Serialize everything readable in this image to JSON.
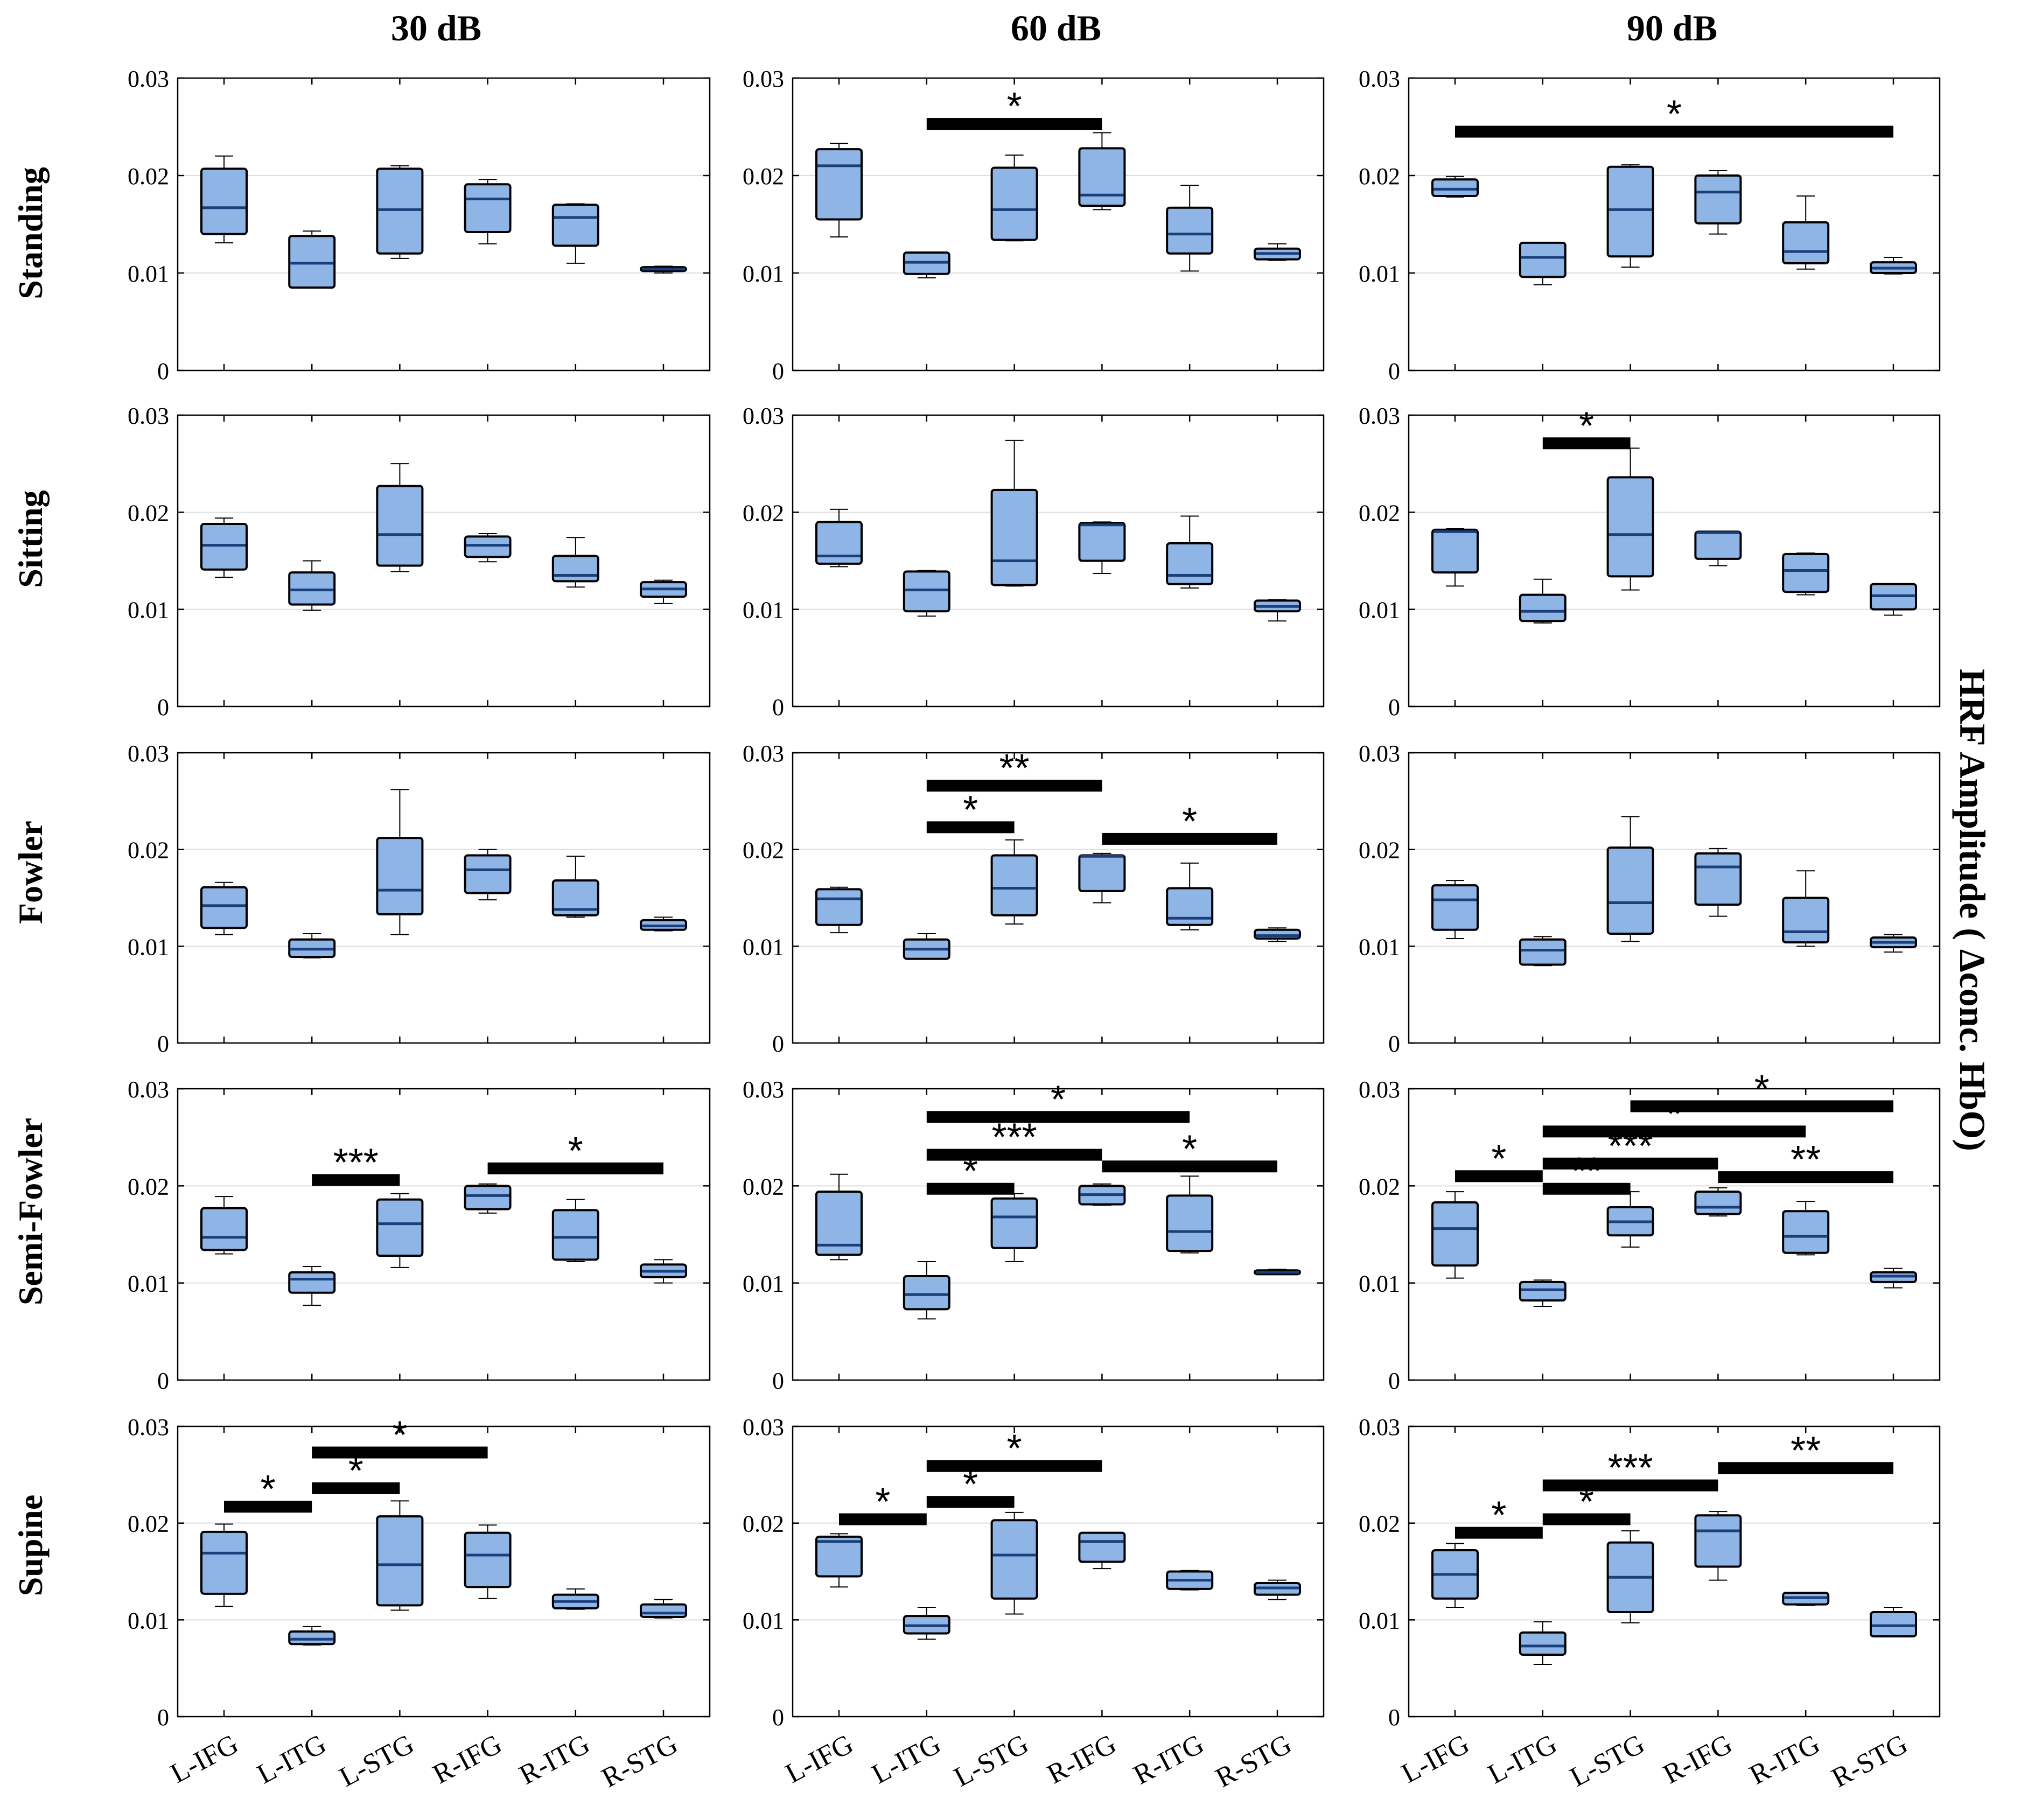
{
  "col_titles": [
    "30 dB",
    "60 dB",
    "90 dB"
  ],
  "row_titles": [
    "Standing",
    "Sitting",
    "Fowler",
    "Semi-Fowler",
    "Supine"
  ],
  "side_label": "HRF Amplitude ( Δconc. HbO)",
  "colors": {
    "box_fill": "#8fb4e6",
    "box_edge": "#000000",
    "median": "#1a3f7a",
    "grid": "#dddddd",
    "sig_bar": "#000000"
  },
  "chart_data": {
    "type": "box",
    "categories": [
      "L-IFG",
      "L-ITG",
      "L-STG",
      "R-IFG",
      "R-ITG",
      "R-STG"
    ],
    "ylim": [
      0,
      0.03
    ],
    "yticks": [
      0,
      0.01,
      0.02,
      0.03
    ],
    "ytick_labels": [
      "0",
      "0.01",
      "0.02",
      "0.03"
    ],
    "panels": [
      {
        "row": "Standing",
        "col": "30 dB",
        "boxes": [
          [
            0.0131,
            0.014,
            0.0167,
            0.0207,
            0.022
          ],
          [
            0.0085,
            0.0085,
            0.011,
            0.0138,
            0.0143
          ],
          [
            0.0115,
            0.012,
            0.0165,
            0.0207,
            0.021
          ],
          [
            0.013,
            0.0142,
            0.0176,
            0.0191,
            0.0196
          ],
          [
            0.011,
            0.0128,
            0.0157,
            0.017,
            0.0171
          ],
          [
            0.01,
            0.0102,
            0.0104,
            0.0106,
            0.0107
          ]
        ],
        "sig": []
      },
      {
        "row": "Standing",
        "col": "60 dB",
        "boxes": [
          [
            0.0137,
            0.0155,
            0.021,
            0.0227,
            0.0233
          ],
          [
            0.0095,
            0.0099,
            0.0111,
            0.0121,
            0.0121
          ],
          [
            0.0133,
            0.0134,
            0.0165,
            0.0208,
            0.0221
          ],
          [
            0.0165,
            0.0169,
            0.018,
            0.0228,
            0.0244
          ],
          [
            0.0102,
            0.012,
            0.014,
            0.0167,
            0.019
          ],
          [
            0.0113,
            0.0114,
            0.012,
            0.0125,
            0.013
          ]
        ],
        "sig": [
          {
            "from": 1,
            "to": 3,
            "y": 0.0253,
            "label": "*"
          }
        ]
      },
      {
        "row": "Standing",
        "col": "90 dB",
        "boxes": [
          [
            0.0178,
            0.0179,
            0.0186,
            0.0196,
            0.0199
          ],
          [
            0.0088,
            0.0096,
            0.0116,
            0.0131,
            0.0131
          ],
          [
            0.0106,
            0.0117,
            0.0165,
            0.0209,
            0.0211
          ],
          [
            0.014,
            0.0151,
            0.0183,
            0.02,
            0.0205
          ],
          [
            0.0104,
            0.011,
            0.0122,
            0.0152,
            0.0179
          ],
          [
            0.0099,
            0.01,
            0.0105,
            0.0111,
            0.0116
          ]
        ],
        "sig": [
          {
            "from": 0,
            "to": 5,
            "y": 0.0245,
            "label": "*"
          }
        ]
      },
      {
        "row": "Sitting",
        "col": "30 dB",
        "boxes": [
          [
            0.0133,
            0.0141,
            0.0166,
            0.0188,
            0.0194
          ],
          [
            0.0099,
            0.0105,
            0.012,
            0.0138,
            0.015
          ],
          [
            0.0139,
            0.0145,
            0.0177,
            0.0227,
            0.025
          ],
          [
            0.0149,
            0.0154,
            0.0166,
            0.0175,
            0.0178
          ],
          [
            0.0123,
            0.0129,
            0.0135,
            0.0155,
            0.0174
          ],
          [
            0.0106,
            0.0113,
            0.0121,
            0.0128,
            0.013
          ]
        ],
        "sig": []
      },
      {
        "row": "Sitting",
        "col": "60 dB",
        "boxes": [
          [
            0.0144,
            0.0147,
            0.0155,
            0.019,
            0.0203
          ],
          [
            0.0093,
            0.0098,
            0.012,
            0.0139,
            0.014
          ],
          [
            0.0124,
            0.0125,
            0.015,
            0.0223,
            0.0274
          ],
          [
            0.0137,
            0.015,
            0.0187,
            0.0189,
            0.019
          ],
          [
            0.0122,
            0.0126,
            0.0135,
            0.0168,
            0.0196
          ],
          [
            0.0088,
            0.0098,
            0.0103,
            0.0109,
            0.011
          ]
        ],
        "sig": []
      },
      {
        "row": "Sitting",
        "col": "90 dB",
        "boxes": [
          [
            0.0124,
            0.0138,
            0.018,
            0.0182,
            0.0183
          ],
          [
            0.0086,
            0.0088,
            0.0098,
            0.0115,
            0.0131
          ],
          [
            0.012,
            0.0134,
            0.0177,
            0.0236,
            0.0266
          ],
          [
            0.0145,
            0.0152,
            0.0179,
            0.018,
            0.018
          ],
          [
            0.0115,
            0.0118,
            0.014,
            0.0157,
            0.0158
          ],
          [
            0.0094,
            0.01,
            0.0114,
            0.0126,
            0.0126
          ]
        ],
        "sig": [
          {
            "from": 1,
            "to": 2,
            "y": 0.0271,
            "label": "*"
          }
        ]
      },
      {
        "row": "Fowler",
        "col": "30 dB",
        "boxes": [
          [
            0.0112,
            0.0119,
            0.0142,
            0.0161,
            0.0166
          ],
          [
            0.0088,
            0.0089,
            0.0097,
            0.0107,
            0.0113
          ],
          [
            0.0112,
            0.0133,
            0.0158,
            0.0212,
            0.0262
          ],
          [
            0.0148,
            0.0155,
            0.0179,
            0.0194,
            0.02
          ],
          [
            0.013,
            0.0132,
            0.0138,
            0.0168,
            0.0193
          ],
          [
            0.0116,
            0.0117,
            0.0121,
            0.0127,
            0.013
          ]
        ],
        "sig": []
      },
      {
        "row": "Fowler",
        "col": "60 dB",
        "boxes": [
          [
            0.0114,
            0.0122,
            0.0149,
            0.0159,
            0.0161
          ],
          [
            0.0087,
            0.0087,
            0.0097,
            0.0107,
            0.0113
          ],
          [
            0.0123,
            0.0132,
            0.016,
            0.0194,
            0.021
          ],
          [
            0.0145,
            0.0157,
            0.0193,
            0.0194,
            0.0196
          ],
          [
            0.0117,
            0.0122,
            0.0129,
            0.016,
            0.0186
          ],
          [
            0.0105,
            0.0108,
            0.0111,
            0.0117,
            0.0119
          ]
        ],
        "sig": [
          {
            "from": 1,
            "to": 3,
            "y": 0.0266,
            "label": "**"
          },
          {
            "from": 1,
            "to": 2,
            "y": 0.0223,
            "label": "*"
          },
          {
            "from": 3,
            "to": 5,
            "y": 0.0211,
            "label": "*"
          }
        ]
      },
      {
        "row": "Fowler",
        "col": "90 dB",
        "boxes": [
          [
            0.0108,
            0.0117,
            0.0148,
            0.0163,
            0.0168
          ],
          [
            0.008,
            0.0081,
            0.0096,
            0.0107,
            0.011
          ],
          [
            0.0105,
            0.0113,
            0.0145,
            0.0202,
            0.0234
          ],
          [
            0.0131,
            0.0143,
            0.0182,
            0.0196,
            0.0201
          ],
          [
            0.01,
            0.0104,
            0.0115,
            0.015,
            0.0178
          ],
          [
            0.0094,
            0.0099,
            0.0104,
            0.0109,
            0.0112
          ]
        ],
        "sig": []
      },
      {
        "row": "Semi-Fowler",
        "col": "30 dB",
        "boxes": [
          [
            0.013,
            0.0134,
            0.0147,
            0.0177,
            0.0189
          ],
          [
            0.0077,
            0.009,
            0.0104,
            0.0111,
            0.0117
          ],
          [
            0.0116,
            0.0128,
            0.0161,
            0.0186,
            0.0192
          ],
          [
            0.0172,
            0.0176,
            0.019,
            0.02,
            0.0202
          ],
          [
            0.0122,
            0.0124,
            0.0147,
            0.0175,
            0.0186
          ],
          [
            0.01,
            0.0106,
            0.0112,
            0.0119,
            0.0124
          ]
        ],
        "sig": [
          {
            "from": 1,
            "to": 2,
            "y": 0.0206,
            "label": "***"
          },
          {
            "from": 3,
            "to": 5,
            "y": 0.0218,
            "label": "*"
          }
        ]
      },
      {
        "row": "Semi-Fowler",
        "col": "60 dB",
        "boxes": [
          [
            0.0124,
            0.0129,
            0.0139,
            0.0194,
            0.0212
          ],
          [
            0.0063,
            0.0073,
            0.0088,
            0.0107,
            0.0122
          ],
          [
            0.0122,
            0.0136,
            0.0168,
            0.0187,
            0.0192
          ],
          [
            0.018,
            0.0181,
            0.0191,
            0.02,
            0.0202
          ],
          [
            0.0131,
            0.0133,
            0.0153,
            0.019,
            0.021
          ],
          [
            0.0109,
            0.0109,
            0.0111,
            0.0113,
            0.0114
          ]
        ],
        "sig": [
          {
            "from": 1,
            "to": 4,
            "y": 0.0271,
            "label": "*"
          },
          {
            "from": 1,
            "to": 3,
            "y": 0.0232,
            "label": "***"
          },
          {
            "from": 1,
            "to": 2,
            "y": 0.0197,
            "label": "*"
          },
          {
            "from": 3,
            "to": 5,
            "y": 0.022,
            "label": "*"
          }
        ]
      },
      {
        "row": "Semi-Fowler",
        "col": "90 dB",
        "boxes": [
          [
            0.0105,
            0.0118,
            0.0156,
            0.0183,
            0.0194
          ],
          [
            0.0076,
            0.0082,
            0.0093,
            0.0101,
            0.0103
          ],
          [
            0.0137,
            0.0149,
            0.0163,
            0.0178,
            0.0194
          ],
          [
            0.0169,
            0.0171,
            0.0178,
            0.0194,
            0.0198
          ],
          [
            0.0129,
            0.0131,
            0.0148,
            0.0174,
            0.0184
          ],
          [
            0.0095,
            0.0101,
            0.0107,
            0.0111,
            0.0115
          ]
        ],
        "sig": [
          {
            "from": 2,
            "to": 5,
            "y": 0.0282,
            "label": "*"
          },
          {
            "from": 1,
            "to": 4,
            "y": 0.0256,
            "label": "*"
          },
          {
            "from": 1,
            "to": 3,
            "y": 0.0223,
            "label": "***"
          },
          {
            "from": 0,
            "to": 1,
            "y": 0.021,
            "label": "*"
          },
          {
            "from": 1,
            "to": 2,
            "y": 0.0197,
            "label": "**"
          },
          {
            "from": 3,
            "to": 5,
            "y": 0.0209,
            "label": "**"
          }
        ]
      },
      {
        "row": "Supine",
        "col": "30 dB",
        "boxes": [
          [
            0.0114,
            0.0127,
            0.0169,
            0.0191,
            0.0199
          ],
          [
            0.0074,
            0.0075,
            0.008,
            0.0088,
            0.0093
          ],
          [
            0.011,
            0.0115,
            0.0157,
            0.0207,
            0.0223
          ],
          [
            0.0122,
            0.0134,
            0.0167,
            0.019,
            0.0198
          ],
          [
            0.0111,
            0.0112,
            0.0119,
            0.0126,
            0.0132
          ],
          [
            0.0102,
            0.0103,
            0.0107,
            0.0116,
            0.0121
          ]
        ],
        "sig": [
          {
            "from": 0,
            "to": 1,
            "y": 0.0217,
            "label": "*"
          },
          {
            "from": 1,
            "to": 2,
            "y": 0.0236,
            "label": "*"
          },
          {
            "from": 1,
            "to": 3,
            "y": 0.0273,
            "label": "*"
          }
        ]
      },
      {
        "row": "Supine",
        "col": "60 dB",
        "boxes": [
          [
            0.0134,
            0.0145,
            0.0181,
            0.0186,
            0.0189
          ],
          [
            0.008,
            0.0086,
            0.0094,
            0.0104,
            0.0113
          ],
          [
            0.0106,
            0.0122,
            0.0167,
            0.0203,
            0.0211
          ],
          [
            0.0153,
            0.016,
            0.0181,
            0.019,
            0.019
          ],
          [
            0.0131,
            0.0132,
            0.0141,
            0.015,
            0.0151
          ],
          [
            0.0121,
            0.0126,
            0.0133,
            0.0138,
            0.0141
          ]
        ],
        "sig": [
          {
            "from": 0,
            "to": 1,
            "y": 0.0204,
            "label": "*"
          },
          {
            "from": 1,
            "to": 2,
            "y": 0.0222,
            "label": "*"
          },
          {
            "from": 1,
            "to": 3,
            "y": 0.0259,
            "label": "*"
          }
        ]
      },
      {
        "row": "Supine",
        "col": "90 dB",
        "boxes": [
          [
            0.0113,
            0.0122,
            0.0147,
            0.0172,
            0.0179
          ],
          [
            0.0054,
            0.0064,
            0.0073,
            0.0087,
            0.0098
          ],
          [
            0.0097,
            0.0108,
            0.0144,
            0.018,
            0.0192
          ],
          [
            0.0141,
            0.0155,
            0.0192,
            0.0208,
            0.0212
          ],
          [
            0.0115,
            0.0116,
            0.0123,
            0.0128,
            0.0128
          ],
          [
            0.0083,
            0.0083,
            0.0094,
            0.0108,
            0.0113
          ]
        ],
        "sig": [
          {
            "from": 0,
            "to": 1,
            "y": 0.019,
            "label": "*"
          },
          {
            "from": 1,
            "to": 2,
            "y": 0.0204,
            "label": "*"
          },
          {
            "from": 1,
            "to": 3,
            "y": 0.0239,
            "label": "***"
          },
          {
            "from": 3,
            "to": 5,
            "y": 0.0257,
            "label": "**"
          }
        ]
      }
    ]
  }
}
